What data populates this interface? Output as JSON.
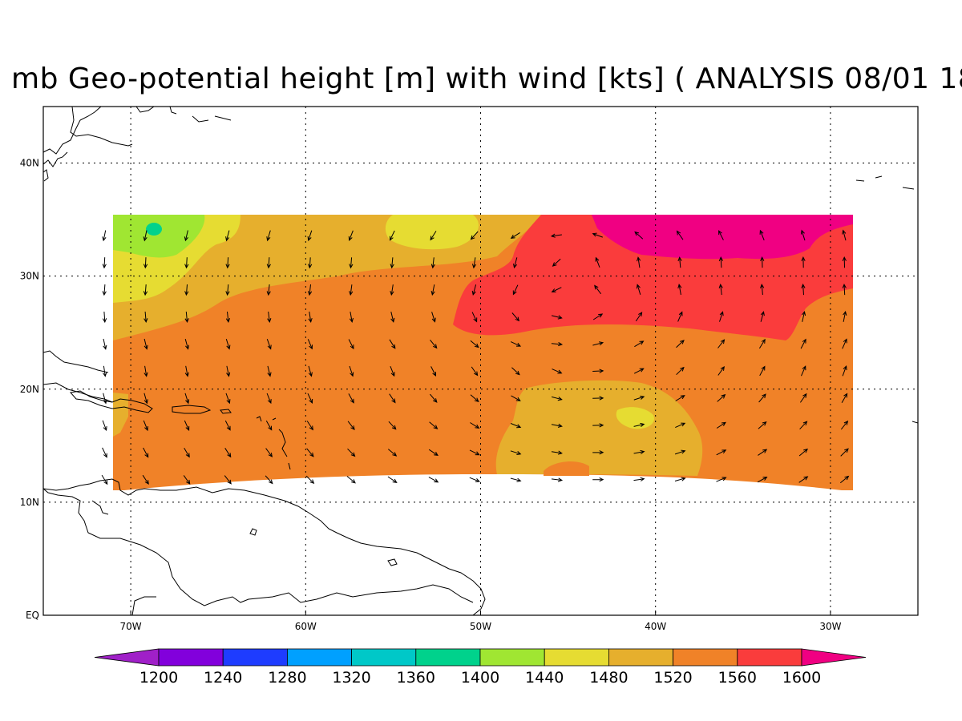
{
  "title": "mb Geo-potential height [m] with wind [kts] ( ANALYSIS 08/01 18",
  "map": {
    "lon_range": [
      -75,
      -25
    ],
    "lat_range": [
      0,
      45
    ],
    "lon_ticks": [
      {
        "value": -70,
        "label": "70W"
      },
      {
        "value": -60,
        "label": "60W"
      },
      {
        "value": -50,
        "label": "50W"
      },
      {
        "value": -40,
        "label": "40W"
      },
      {
        "value": -30,
        "label": "30W"
      }
    ],
    "lat_ticks": [
      {
        "value": 0,
        "label": "EQ"
      },
      {
        "value": 10,
        "label": "10N"
      },
      {
        "value": 20,
        "label": "20N"
      },
      {
        "value": 30,
        "label": "30N"
      },
      {
        "value": 40,
        "label": "40N"
      }
    ],
    "grid": "dotted"
  },
  "colorbar": {
    "levels": [
      "1200",
      "1240",
      "1280",
      "1320",
      "1360",
      "1400",
      "1440",
      "1480",
      "1520",
      "1560",
      "1600"
    ],
    "colors": [
      "#a020c8",
      "#8200dc",
      "#1e3cff",
      "#00a0ff",
      "#00c8c8",
      "#00d28c",
      "#a0e632",
      "#e6dc32",
      "#e6af2d",
      "#f08228",
      "#fa3c3c",
      "#f00082"
    ]
  },
  "field_colors": {
    "c1400": "#a0e632",
    "c1440": "#a0e632",
    "c1380": "#00d28c",
    "c1480": "#e6dc32",
    "c1520": "#e6af2d",
    "c1560": "#f08228",
    "c1600": "#fa3c3c",
    "c1640": "#f00082"
  }
}
